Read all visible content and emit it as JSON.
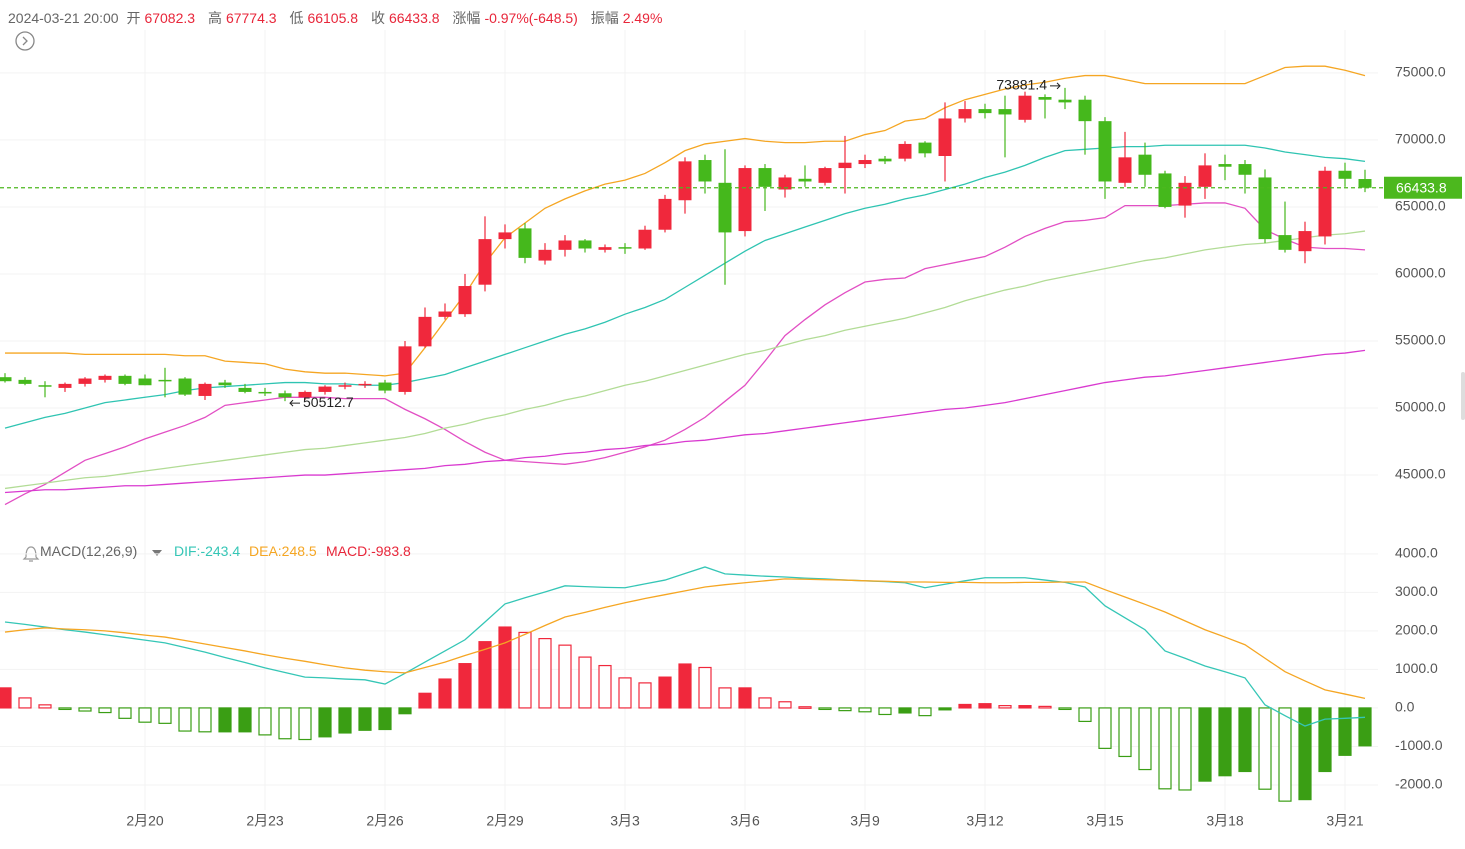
{
  "header": {
    "date": "2024-03-21 20:00",
    "open_label": "开",
    "high_label": "高",
    "low_label": "低",
    "close_label": "收",
    "change_label": "涨幅",
    "change": "-0.97%(-648.5)",
    "amplitude_label": "振幅",
    "amplitude": "2.49%"
  },
  "chart_data": [
    {
      "type": "candlestick",
      "categories": [
        null,
        null,
        null,
        null,
        null,
        null,
        null,
        "2月20",
        null,
        null,
        null,
        null,
        null,
        "2月23",
        null,
        null,
        null,
        null,
        null,
        "2月26",
        null,
        null,
        null,
        null,
        null,
        "2月29",
        null,
        null,
        null,
        null,
        null,
        "3月3",
        null,
        null,
        null,
        null,
        null,
        "3月6",
        null,
        null,
        null,
        null,
        null,
        "3月9",
        null,
        null,
        null,
        null,
        null,
        "3月12",
        null,
        null,
        null,
        null,
        null,
        "3月15",
        null,
        null,
        null,
        null,
        null,
        "3月18",
        null,
        null,
        null,
        null,
        null,
        "3月21",
        null
      ],
      "open": [
        52300,
        52100,
        51700,
        51500,
        51800,
        52100,
        52400,
        52200,
        52100,
        52200,
        50900,
        51900,
        51500,
        51200,
        51100,
        50800,
        51200,
        51600,
        51700,
        51900,
        51200,
        54600,
        56800,
        57000,
        59200,
        62600,
        63400,
        61000,
        61800,
        62500,
        61800,
        62000,
        61900,
        63300,
        65500,
        68500,
        66800,
        63200,
        67900,
        66300,
        67100,
        66800,
        67900,
        68200,
        68600,
        68600,
        69800,
        68800,
        71600,
        72300,
        72300,
        71500,
        73200,
        73000,
        73000,
        71400,
        66800,
        68900,
        67500,
        65100,
        66500,
        68200,
        68200,
        67200,
        62900,
        61700,
        62800,
        67700,
        67082.3
      ],
      "high": [
        52600,
        52300,
        52000,
        51900,
        52300,
        52500,
        52500,
        52500,
        53000,
        52300,
        51900,
        52100,
        51800,
        51500,
        51300,
        51300,
        51700,
        51900,
        52000,
        52100,
        55000,
        57500,
        57800,
        60000,
        64300,
        63700,
        63800,
        62300,
        62900,
        62600,
        62200,
        62300,
        63600,
        65900,
        68700,
        68900,
        69300,
        68100,
        68200,
        67400,
        68100,
        68000,
        70300,
        68900,
        68800,
        69900,
        69900,
        72800,
        72900,
        72700,
        73300,
        73600,
        73400,
        73881.4,
        73300,
        71700,
        70600,
        69800,
        67700,
        67300,
        69000,
        68900,
        68500,
        67800,
        65400,
        63900,
        68000,
        68300,
        67774.3
      ],
      "low": [
        51900,
        51700,
        50800,
        51200,
        51600,
        51900,
        51700,
        51700,
        50800,
        50900,
        50600,
        51500,
        51100,
        50900,
        50512.7,
        50600,
        51000,
        51400,
        51500,
        51100,
        51000,
        54500,
        56600,
        56800,
        58700,
        61900,
        60800,
        60700,
        61300,
        61600,
        61600,
        61500,
        61800,
        63100,
        64500,
        66000,
        59200,
        62800,
        64700,
        65700,
        66500,
        66600,
        66000,
        67900,
        68200,
        68400,
        68700,
        66900,
        71300,
        71600,
        68700,
        71300,
        71600,
        72300,
        68900,
        65600,
        66500,
        66500,
        64900,
        64200,
        65600,
        67000,
        66000,
        62300,
        61600,
        60800,
        62200,
        66500,
        66105.8
      ],
      "close": [
        52000,
        51800,
        51600,
        51800,
        52200,
        52400,
        51800,
        51700,
        52000,
        51000,
        51800,
        51700,
        51200,
        51100,
        50800,
        51200,
        51600,
        51700,
        51800,
        51300,
        54600,
        56800,
        57200,
        59100,
        62600,
        63100,
        61200,
        61800,
        62500,
        61900,
        62000,
        61900,
        63300,
        65600,
        68400,
        66900,
        63100,
        67900,
        66500,
        67200,
        66900,
        67900,
        68300,
        68500,
        68400,
        69700,
        69000,
        71600,
        72300,
        72000,
        71900,
        73300,
        73000,
        72800,
        71400,
        66900,
        68700,
        67400,
        65000,
        66800,
        68100,
        68000,
        67400,
        62600,
        61800,
        63200,
        67700,
        67100,
        66433.8
      ],
      "up_color": "#f0283c",
      "down_color": "#45b81c",
      "last_price_color": "#4cb81e",
      "lines": [
        {
          "color": "#f5a623",
          "values": [
            54100,
            54100,
            54100,
            54100,
            54000,
            54000,
            54000,
            54000,
            54000,
            53900,
            53900,
            53500,
            53400,
            53300,
            52900,
            52700,
            52600,
            52600,
            52500,
            52400,
            52600,
            54500,
            56500,
            58500,
            60800,
            62700,
            63800,
            64900,
            65600,
            66200,
            66700,
            67000,
            67500,
            68300,
            69200,
            69700,
            69900,
            70100,
            69900,
            69800,
            69800,
            69900,
            69900,
            70400,
            70700,
            71400,
            71600,
            72400,
            73000,
            73400,
            73800,
            74100,
            74300,
            74600,
            74800,
            74800,
            74500,
            74200,
            74200,
            74200,
            74200,
            74200,
            74200,
            74800,
            75400,
            75500,
            75500,
            75200,
            74800
          ]
        },
        {
          "color": "#2fc4b2",
          "values": [
            48500,
            48900,
            49300,
            49600,
            50000,
            50400,
            50600,
            50800,
            51000,
            51300,
            51500,
            51600,
            51700,
            51800,
            51900,
            51900,
            51800,
            51800,
            51700,
            51700,
            51900,
            52200,
            52500,
            53000,
            53500,
            54000,
            54500,
            55000,
            55500,
            55900,
            56400,
            57000,
            57500,
            58100,
            59000,
            59900,
            60800,
            61700,
            62500,
            63000,
            63500,
            64000,
            64500,
            64900,
            65200,
            65600,
            65900,
            66300,
            66700,
            67200,
            67600,
            68100,
            68700,
            69200,
            69300,
            69400,
            69500,
            69500,
            69600,
            69600,
            69600,
            69600,
            69600,
            69400,
            69100,
            68900,
            68700,
            68600,
            68400
          ]
        },
        {
          "color": "#e24fc4",
          "values": [
            42800,
            43600,
            44300,
            45200,
            46100,
            46600,
            47100,
            47700,
            48200,
            48700,
            49300,
            50200,
            50400,
            50600,
            50800,
            50800,
            50800,
            50700,
            50700,
            50700,
            49900,
            49200,
            48400,
            47500,
            46700,
            46100,
            46000,
            45900,
            45800,
            46000,
            46300,
            46700,
            47100,
            47600,
            48400,
            49300,
            50500,
            51700,
            53500,
            55400,
            56600,
            57700,
            58600,
            59400,
            59600,
            59700,
            60400,
            60700,
            61000,
            61300,
            62000,
            62800,
            63400,
            63900,
            64000,
            64200,
            65100,
            65100,
            65100,
            65200,
            65300,
            65300,
            64900,
            63300,
            62600,
            62000,
            61900,
            61900,
            61800
          ]
        },
        {
          "color": "#b2dc96",
          "values": [
            44000,
            44200,
            44400,
            44600,
            44800,
            44900,
            45100,
            45300,
            45500,
            45700,
            45900,
            46100,
            46300,
            46500,
            46700,
            46900,
            47000,
            47200,
            47400,
            47600,
            47800,
            48100,
            48500,
            48800,
            49200,
            49500,
            49900,
            50200,
            50600,
            50900,
            51300,
            51700,
            52000,
            52400,
            52800,
            53200,
            53600,
            54000,
            54300,
            54700,
            55100,
            55400,
            55800,
            56100,
            56400,
            56700,
            57100,
            57500,
            58000,
            58400,
            58800,
            59100,
            59500,
            59800,
            60100,
            60400,
            60700,
            61000,
            61200,
            61500,
            61800,
            62000,
            62200,
            62300,
            62500,
            62700,
            62900,
            63000,
            63200
          ]
        },
        {
          "color": "#d93ad0",
          "values": [
            43700,
            43800,
            43900,
            43900,
            44000,
            44100,
            44200,
            44200,
            44300,
            44400,
            44500,
            44600,
            44700,
            44800,
            44900,
            45000,
            45000,
            45100,
            45200,
            45300,
            45400,
            45500,
            45700,
            45800,
            46000,
            46100,
            46300,
            46400,
            46600,
            46700,
            46900,
            47000,
            47200,
            47300,
            47500,
            47600,
            47800,
            48000,
            48100,
            48300,
            48500,
            48700,
            48900,
            49100,
            49300,
            49500,
            49700,
            49900,
            50000,
            50200,
            50400,
            50700,
            51000,
            51300,
            51600,
            51900,
            52100,
            52300,
            52400,
            52600,
            52800,
            53000,
            53200,
            53400,
            53600,
            53800,
            54000,
            54100,
            54300
          ]
        }
      ],
      "ylim": [
        40900,
        78200
      ],
      "yticks": [
        {
          "value": 45000,
          "label": "45000.0"
        },
        {
          "value": 50000,
          "label": "50000.0"
        },
        {
          "value": 55000,
          "label": "55000.0"
        },
        {
          "value": 60000,
          "label": "60000.0"
        },
        {
          "value": 65000,
          "label": "65000.0"
        },
        {
          "value": 70000,
          "label": "70000.0"
        },
        {
          "value": 75000,
          "label": "75000.0"
        }
      ],
      "grid": true
    },
    {
      "type": "macd",
      "legend": {
        "title": "MACD(12,26,9)",
        "dif": "DIF:-243.4",
        "dea": "DEA:248.5",
        "macd": "MACD:-983.8"
      },
      "dif": {
        "color": "#35c6b6",
        "values": [
          2230,
          2170,
          2100,
          2030,
          1970,
          1900,
          1830,
          1760,
          1690,
          1570,
          1450,
          1310,
          1180,
          1040,
          920,
          800,
          780,
          750,
          730,
          620,
          900,
          1190,
          1480,
          1770,
          2230,
          2700,
          2860,
          3010,
          3170,
          3150,
          3130,
          3120,
          3220,
          3320,
          3490,
          3660,
          3480,
          3450,
          3420,
          3400,
          3370,
          3350,
          3320,
          3300,
          3280,
          3250,
          3120,
          3210,
          3300,
          3380,
          3380,
          3380,
          3320,
          3260,
          3140,
          2650,
          2340,
          2030,
          1480,
          1290,
          1090,
          940,
          780,
          80,
          -200,
          -470,
          -290,
          -270,
          -243.4
        ]
      },
      "dea": {
        "color": "#f5a623",
        "values": [
          1970,
          2030,
          2080,
          2050,
          2030,
          2000,
          1950,
          1890,
          1840,
          1750,
          1660,
          1570,
          1480,
          1380,
          1290,
          1210,
          1120,
          1040,
          980,
          940,
          910,
          1050,
          1190,
          1360,
          1520,
          1690,
          1910,
          2140,
          2360,
          2480,
          2610,
          2730,
          2840,
          2940,
          3040,
          3140,
          3200,
          3250,
          3300,
          3350,
          3340,
          3330,
          3320,
          3300,
          3290,
          3270,
          3270,
          3260,
          3260,
          3250,
          3250,
          3260,
          3260,
          3270,
          3270,
          3070,
          2880,
          2690,
          2490,
          2260,
          2030,
          1840,
          1640,
          1290,
          940,
          700,
          470,
          360,
          248.5
        ]
      },
      "histogram": [
        520,
        260,
        80,
        -30,
        -80,
        -120,
        -270,
        -370,
        -400,
        -600,
        -620,
        -620,
        -620,
        -700,
        -800,
        -820,
        -750,
        -650,
        -580,
        -560,
        -150,
        380,
        750,
        1150,
        1720,
        2100,
        1960,
        1800,
        1630,
        1320,
        1100,
        780,
        650,
        800,
        1140,
        1050,
        520,
        520,
        260,
        160,
        30,
        -30,
        -70,
        -100,
        -170,
        -130,
        -200,
        -50,
        90,
        110,
        60,
        60,
        40,
        -20,
        -350,
        -1050,
        -1260,
        -1600,
        -2100,
        -2130,
        -1900,
        -1760,
        -1650,
        -2110,
        -2420,
        -2380,
        -1650,
        -1230,
        -983.8
      ],
      "up_color": "#f0283c",
      "down_color": "#3a9e14",
      "macd_color": "#e8263a",
      "ylim": [
        -2650,
        4360
      ],
      "yticks": [
        {
          "value": 4000,
          "label": "4000.0"
        },
        {
          "value": 3000,
          "label": "3000.0"
        },
        {
          "value": 2000,
          "label": "2000.0"
        },
        {
          "value": 1000,
          "label": "1000.0"
        },
        {
          "value": 0,
          "label": "0.0"
        },
        {
          "value": -1000,
          "label": "-1000.0"
        },
        {
          "value": -2000,
          "label": "-2000.0"
        }
      ]
    }
  ]
}
